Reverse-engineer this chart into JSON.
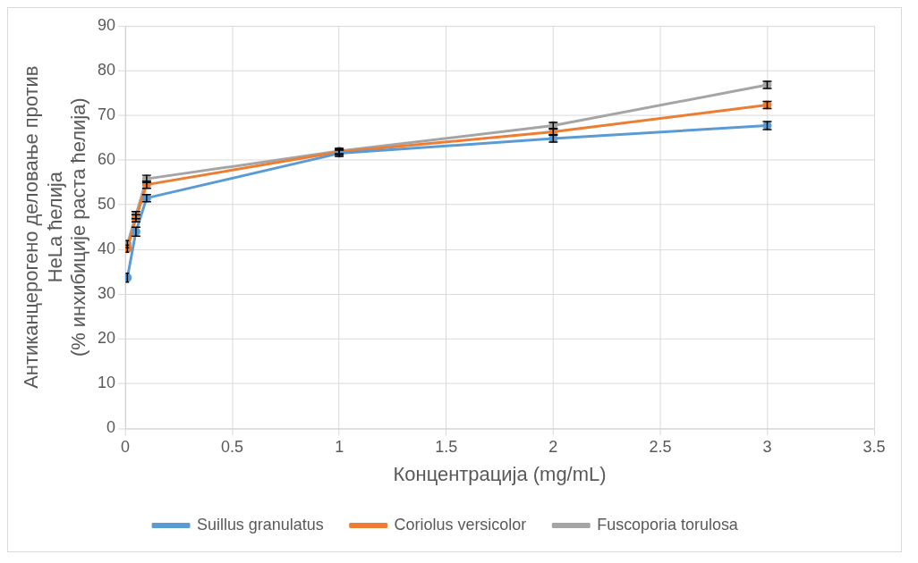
{
  "chart_data": {
    "type": "line",
    "xlabel": "Концентрација (mg/mL)",
    "ylabel": "Антиканцерогено деловање против\nHeLa ћелија\n(% инхибиције раста ћелија)",
    "x": [
      0.01,
      0.05,
      0.1,
      1,
      2,
      3
    ],
    "series": [
      {
        "name": "Suillus granulatus",
        "color": "#5b9bd5",
        "values": [
          33.7,
          44.0,
          51.5,
          61.5,
          64.8,
          67.7
        ],
        "errors": [
          1,
          1,
          0.8,
          0.7,
          0.8,
          0.9
        ]
      },
      {
        "name": "Coriolus versicolor",
        "color": "#ed7d31",
        "values": [
          40.2,
          47.0,
          54.5,
          61.8,
          66.3,
          72.3
        ],
        "errors": [
          0.8,
          0.8,
          0.8,
          0.6,
          0.7,
          0.8
        ]
      },
      {
        "name": "Fuscoporia torulosa",
        "color": "#a5a5a5",
        "values": [
          41.2,
          47.7,
          55.8,
          62.0,
          67.7,
          76.8
        ],
        "errors": [
          0.8,
          0.8,
          0.8,
          0.6,
          0.7,
          0.8
        ]
      }
    ],
    "xlim": [
      0,
      3.5
    ],
    "xticks": [
      0,
      0.5,
      1,
      1.5,
      2,
      2.5,
      3,
      3.5
    ],
    "ylim": [
      0,
      90
    ],
    "yticks": [
      0,
      10,
      20,
      30,
      40,
      50,
      60,
      70,
      80,
      90
    ],
    "grid": true,
    "legend": "bottom",
    "marker": "circle",
    "line_style": "solid"
  }
}
